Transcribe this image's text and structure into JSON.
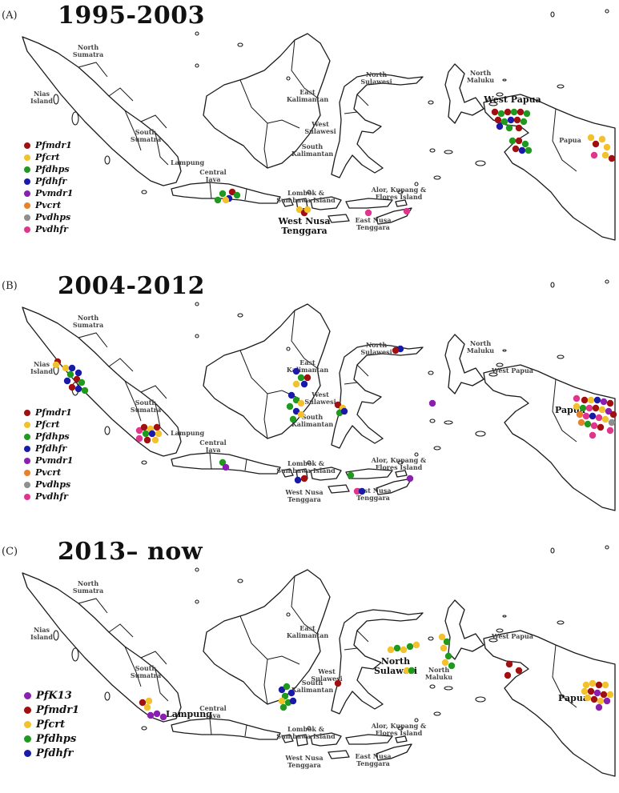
{
  "colors": {
    "Pfmdr1": "#a01010",
    "Pfcrt": "#f2c12e",
    "Pfdhps": "#1f9a1f",
    "Pfdhfr": "#1a1aa8",
    "Pvmdr1": "#8a1fb0",
    "Pvcrt": "#e8822a",
    "Pvdhps": "#8e8e8e",
    "Pvdhfr": "#e0358c",
    "PfK13": "#8a1fb0"
  },
  "panels": [
    {
      "label": "(A)",
      "period": "1995-2003",
      "legend": [
        "Pfmdr1",
        "Pfcrt",
        "Pfdhps",
        "Pfdhfr",
        "Pvmdr1",
        "Pvcrt",
        "Pvdhps",
        "Pvdhfr"
      ],
      "regions": {
        "north_sumatra": [
          "North",
          "Sumatra"
        ],
        "nias": [
          "Nias",
          "Island"
        ],
        "south_sumatra": [
          "South",
          "Sumatra"
        ],
        "lampung": [
          "Lampung"
        ],
        "central_java": [
          "Central",
          "Java"
        ],
        "east_kalimantan": [
          "East",
          "Kalimantan"
        ],
        "south_kalimantan": [
          "South",
          "Kalimantan"
        ],
        "west_sulawesi": [
          "West",
          "Sulawesi"
        ],
        "north_sulawesi": [
          "North",
          "Sulawesi"
        ],
        "north_maluku": [
          "North",
          "Maluku"
        ],
        "west_papua": [
          "West Papua"
        ],
        "papua": [
          "Papua"
        ],
        "lombok": [
          "Lombok &",
          "Sumbawa Island"
        ],
        "west_nusa": [
          "West Nusa",
          "Tenggara"
        ],
        "alor": [
          "Alor, Kupang &",
          "Flores Island"
        ],
        "east_nusa": [
          "East Nusa",
          "Tenggara"
        ]
      },
      "big_regions": [
        "west_papua",
        "west_nusa"
      ]
    },
    {
      "label": "(B)",
      "period": "2004-2012",
      "legend": [
        "Pfmdr1",
        "Pfcrt",
        "Pfdhps",
        "Pfdhfr",
        "Pvmdr1",
        "Pvcrt",
        "Pvdhps",
        "Pvdhfr"
      ],
      "regions": {
        "north_sumatra": [
          "North",
          "Sumatra"
        ],
        "nias": [
          "Nias",
          "Island"
        ],
        "south_sumatra": [
          "South",
          "Sumatra"
        ],
        "lampung": [
          "Lampung"
        ],
        "central_java": [
          "Central",
          "Java"
        ],
        "east_kalimantan": [
          "East",
          "Kalimantan"
        ],
        "south_kalimantan": [
          "South",
          "Kalimantan"
        ],
        "west_sulawesi": [
          "West",
          "Sulawesi"
        ],
        "north_sulawesi": [
          "North",
          "Sulawesi"
        ],
        "north_maluku": [
          "North",
          "Maluku"
        ],
        "west_papua": [
          "West Papua"
        ],
        "papua": [
          "Papua"
        ],
        "lombok": [
          "Lombok &",
          "Sumbawa Island"
        ],
        "west_nusa": [
          "West Nusa",
          "Tenggara"
        ],
        "alor": [
          "Alor, Kupang &",
          "Flores Island"
        ],
        "east_nusa": [
          "East Nusa",
          "Tenggara"
        ]
      },
      "big_regions": [
        "papua"
      ]
    },
    {
      "label": "(C)",
      "period": "2013– now",
      "legend": [
        "PfK13",
        "Pfmdr1",
        "Pfcrt",
        "Pfdhps",
        "Pfdhfr"
      ],
      "regions": {
        "north_sumatra": [
          "North",
          "Sumatra"
        ],
        "nias": [
          "Nias",
          "Island"
        ],
        "south_sumatra": [
          "South",
          "Sumatra"
        ],
        "lampung": [
          "Lampung"
        ],
        "central_java": [
          "Central",
          "Java"
        ],
        "east_kalimantan": [
          "East",
          "Kalimantan"
        ],
        "south_kalimantan": [
          "South",
          "Kalimantan"
        ],
        "west_sulawesi": [
          "West",
          "Sulawesi"
        ],
        "north_sulawesi": [
          "North",
          "Sulawesi"
        ],
        "north_maluku": [
          "North",
          "Maluku"
        ],
        "west_papua": [
          "West Papua"
        ],
        "papua": [
          "Papua"
        ],
        "lombok": [
          "Lombok &",
          "Sumbawa Island"
        ],
        "west_nusa": [
          "West Nusa",
          "Tenggara"
        ],
        "alor": [
          "Alor, Kupang &",
          "Flores Island"
        ],
        "east_nusa": [
          "East Nusa",
          "Tenggara"
        ]
      },
      "big_regions": [
        "lampung",
        "papua",
        "north_sulawesi"
      ]
    }
  ]
}
